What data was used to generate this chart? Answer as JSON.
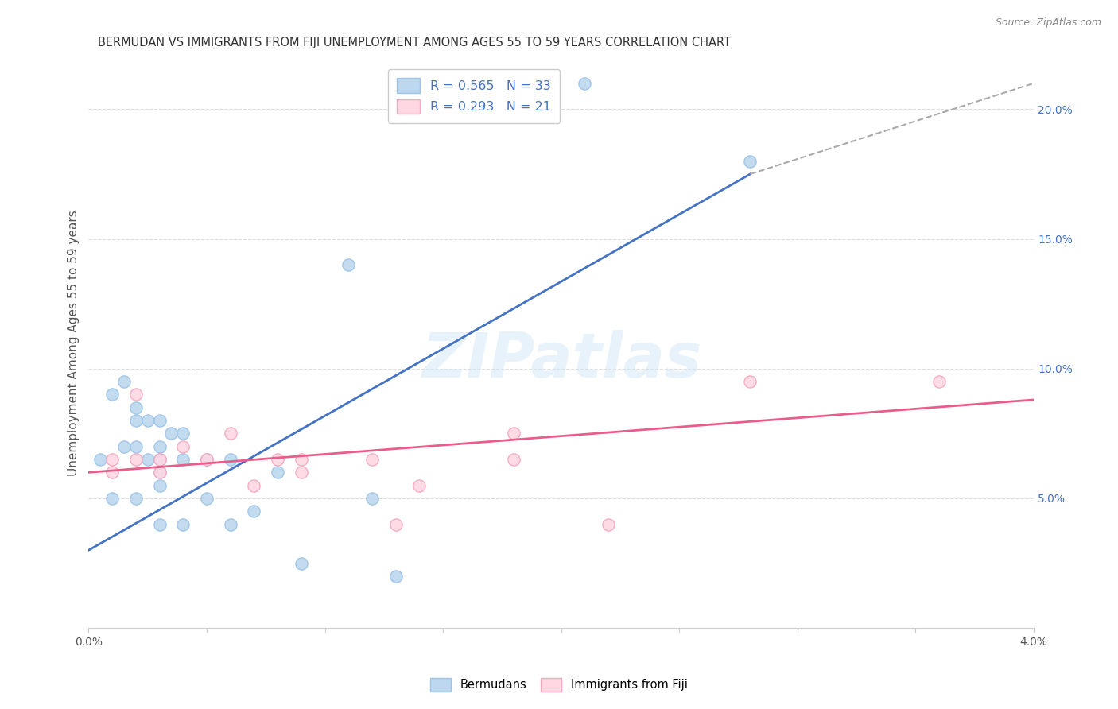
{
  "title": "BERMUDAN VS IMMIGRANTS FROM FIJI UNEMPLOYMENT AMONG AGES 55 TO 59 YEARS CORRELATION CHART",
  "source": "Source: ZipAtlas.com",
  "ylabel": "Unemployment Among Ages 55 to 59 years",
  "xlim": [
    0.0,
    0.04
  ],
  "ylim": [
    0.0,
    0.22
  ],
  "xticks": [
    0.0,
    0.005,
    0.01,
    0.015,
    0.02,
    0.025,
    0.03,
    0.035,
    0.04
  ],
  "xticklabels": [
    "0.0%",
    "",
    "",
    "",
    "",
    "",
    "",
    "",
    "4.0%"
  ],
  "yticks_right": [
    0.05,
    0.1,
    0.15,
    0.2
  ],
  "ytickslabels_right": [
    "5.0%",
    "10.0%",
    "15.0%",
    "20.0%"
  ],
  "legend_r1": "R = 0.565",
  "legend_n1": "N = 33",
  "legend_r2": "R = 0.293",
  "legend_n2": "N = 21",
  "blue_line_color": "#4472C4",
  "pink_line_color": "#E85D8A",
  "blue_scatter_face": "#BDD7EE",
  "blue_scatter_edge": "#9DC3E6",
  "pink_scatter_face": "#FFD7E3",
  "pink_scatter_edge": "#F4A7BE",
  "bermudans_x": [
    0.0005,
    0.001,
    0.001,
    0.0015,
    0.0015,
    0.002,
    0.002,
    0.002,
    0.002,
    0.0025,
    0.0025,
    0.003,
    0.003,
    0.003,
    0.003,
    0.003,
    0.003,
    0.0035,
    0.004,
    0.004,
    0.004,
    0.005,
    0.005,
    0.006,
    0.006,
    0.007,
    0.008,
    0.009,
    0.011,
    0.012,
    0.013,
    0.021,
    0.028
  ],
  "bermudans_y": [
    0.065,
    0.09,
    0.05,
    0.095,
    0.07,
    0.085,
    0.08,
    0.07,
    0.05,
    0.08,
    0.065,
    0.08,
    0.07,
    0.065,
    0.06,
    0.055,
    0.04,
    0.075,
    0.075,
    0.065,
    0.04,
    0.065,
    0.05,
    0.065,
    0.04,
    0.045,
    0.06,
    0.025,
    0.14,
    0.05,
    0.02,
    0.21,
    0.18
  ],
  "fiji_x": [
    0.001,
    0.001,
    0.002,
    0.002,
    0.003,
    0.003,
    0.004,
    0.005,
    0.006,
    0.007,
    0.008,
    0.009,
    0.009,
    0.012,
    0.013,
    0.014,
    0.018,
    0.018,
    0.022,
    0.028,
    0.036
  ],
  "fiji_y": [
    0.065,
    0.06,
    0.09,
    0.065,
    0.065,
    0.06,
    0.07,
    0.065,
    0.075,
    0.055,
    0.065,
    0.065,
    0.06,
    0.065,
    0.04,
    0.055,
    0.075,
    0.065,
    0.04,
    0.095,
    0.095
  ],
  "blue_line_x0": 0.0,
  "blue_line_y0": 0.03,
  "blue_line_x1": 0.028,
  "blue_line_y1": 0.175,
  "dash_line_x0": 0.028,
  "dash_line_y0": 0.175,
  "dash_line_x1": 0.04,
  "dash_line_y1": 0.21,
  "pink_line_x0": 0.0,
  "pink_line_y0": 0.06,
  "pink_line_x1": 0.04,
  "pink_line_y1": 0.088,
  "watermark_text": "ZIPatlas",
  "background_color": "#ffffff",
  "grid_color": "#dddddd"
}
